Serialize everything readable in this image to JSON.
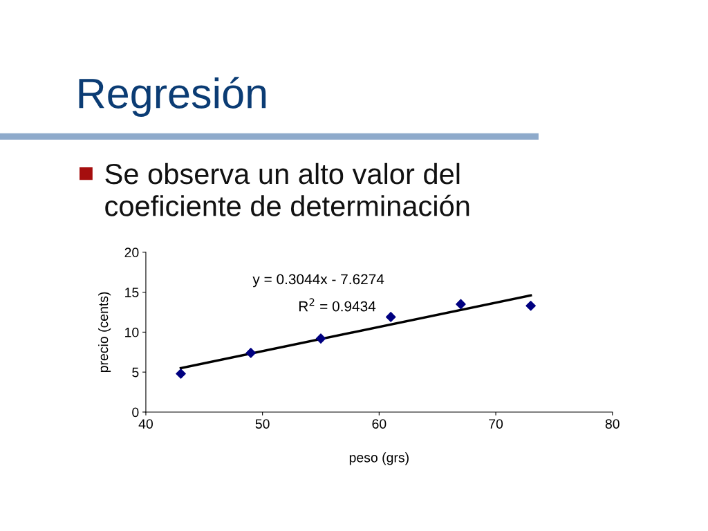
{
  "chart_data": {
    "type": "scatter",
    "title": "Regresión",
    "subtitle": "Se observa un alto valor del coeficiente de determinación",
    "xlabel": "peso (grs)",
    "ylabel": "precio (cents)",
    "series": [
      {
        "color": "#000080",
        "marker": "diamond",
        "x": [
          43,
          49,
          55,
          61,
          67,
          73
        ],
        "values": [
          4.8,
          7.4,
          9.2,
          11.9,
          13.5,
          13.3
        ]
      },
      {
        "type": "line",
        "color": "#000000",
        "marker": "none",
        "line_style": "solid",
        "x": [
          43,
          73
        ],
        "values": [
          5.5,
          14.6
        ]
      }
    ],
    "annotations": [
      "y = 0.3044x - 7.6274",
      "R$^{2}$ = 0.9434"
    ],
    "xlim": [
      40,
      80
    ],
    "xticks": [
      40,
      50,
      60,
      70,
      80
    ],
    "ylim": [
      0,
      20
    ],
    "yticks": [
      0,
      5,
      10,
      15,
      20
    ],
    "grid": false,
    "legend": false
  }
}
